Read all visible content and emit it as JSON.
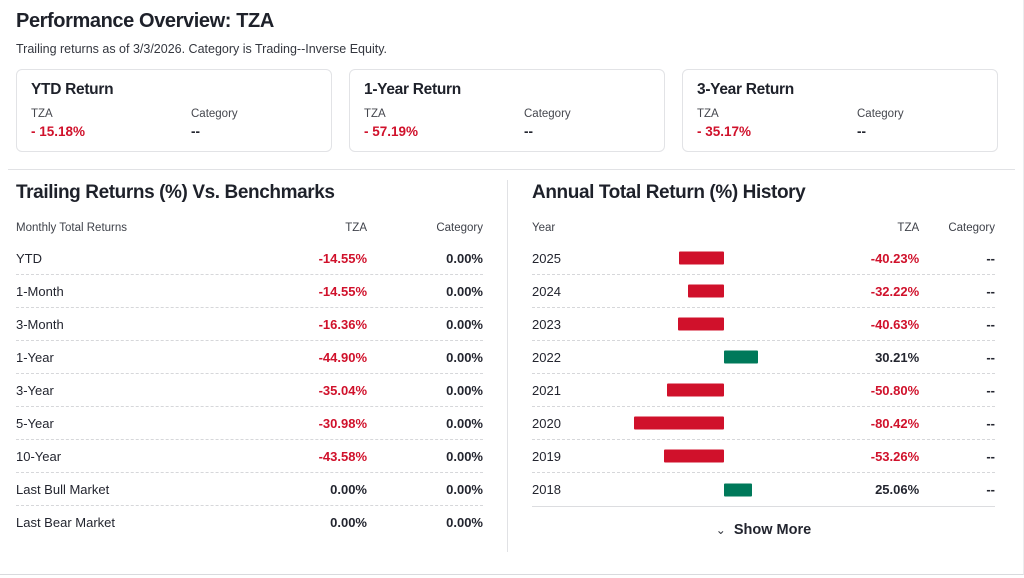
{
  "header": {
    "title": "Performance Overview: TZA",
    "subtitle": "Trailing returns as of 3/3/2026. Category is Trading--Inverse Equity."
  },
  "colors": {
    "negative_red": "#d0112b",
    "positive_green": "#00795a"
  },
  "summary_cards": [
    {
      "title": "YTD Return",
      "fund_label": "TZA",
      "fund_value": "- 15.18%",
      "category_label": "Category",
      "category_value": "--"
    },
    {
      "title": "1-Year Return",
      "fund_label": "TZA",
      "fund_value": "- 57.19%",
      "category_label": "Category",
      "category_value": "--"
    },
    {
      "title": "3-Year Return",
      "fund_label": "TZA",
      "fund_value": "- 35.17%",
      "category_label": "Category",
      "category_value": "--"
    }
  ],
  "trailing_table": {
    "title": "Trailing Returns (%) Vs. Benchmarks",
    "columns": {
      "label": "Monthly Total Returns",
      "tza": "TZA",
      "category": "Category"
    },
    "rows": [
      {
        "label": "YTD",
        "tza": "-14.55%",
        "category": "0.00%"
      },
      {
        "label": "1-Month",
        "tza": "-14.55%",
        "category": "0.00%"
      },
      {
        "label": "3-Month",
        "tza": "-16.36%",
        "category": "0.00%"
      },
      {
        "label": "1-Year",
        "tza": "-44.90%",
        "category": "0.00%"
      },
      {
        "label": "3-Year",
        "tza": "-35.04%",
        "category": "0.00%"
      },
      {
        "label": "5-Year",
        "tza": "-30.98%",
        "category": "0.00%"
      },
      {
        "label": "10-Year",
        "tza": "-43.58%",
        "category": "0.00%"
      },
      {
        "label": "Last Bull Market",
        "tza": "0.00%",
        "category": "0.00%"
      },
      {
        "label": "Last Bear Market",
        "tza": "0.00%",
        "category": "0.00%"
      }
    ]
  },
  "annual_history": {
    "title": "Annual Total Return (%) History",
    "columns": {
      "year": "Year",
      "tza": "TZA",
      "category": "Category"
    },
    "rows": [
      {
        "year": "2025",
        "value": -40.23,
        "tza": "-40.23%",
        "category": "--"
      },
      {
        "year": "2024",
        "value": -32.22,
        "tza": "-32.22%",
        "category": "--"
      },
      {
        "year": "2023",
        "value": -40.63,
        "tza": "-40.63%",
        "category": "--"
      },
      {
        "year": "2022",
        "value": 30.21,
        "tza": "30.21%",
        "category": "--"
      },
      {
        "year": "2021",
        "value": -50.8,
        "tza": "-50.80%",
        "category": "--"
      },
      {
        "year": "2020",
        "value": -80.42,
        "tza": "-80.42%",
        "category": "--"
      },
      {
        "year": "2019",
        "value": -53.26,
        "tza": "-53.26%",
        "category": "--"
      },
      {
        "year": "2018",
        "value": 25.06,
        "tza": "25.06%",
        "category": "--"
      }
    ],
    "show_more": {
      "label": "Show More",
      "chevron": "⌄"
    }
  }
}
